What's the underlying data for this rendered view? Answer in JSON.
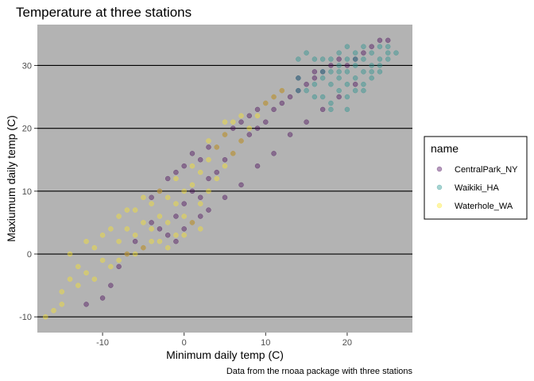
{
  "chart_data": {
    "type": "scatter",
    "title": "Temperature at three stations",
    "xlabel": "Minimum daily temp (C)",
    "ylabel": "Maxiumum daily temp (C)",
    "caption": "Data from the rnoaa package with three stations",
    "xlim": [
      -18,
      28
    ],
    "ylim": [
      -12.5,
      36.5
    ],
    "x_ticks": [
      -10,
      0,
      10,
      20
    ],
    "y_ticks": [
      -10,
      0,
      10,
      20,
      30
    ],
    "x_tick_labels": [
      "-10",
      "0",
      "10",
      "20"
    ],
    "y_tick_labels": [
      "-10",
      "0",
      "10",
      "20",
      "30"
    ],
    "grid": "horizontal major lines only",
    "panel_background": "#b3b3b3",
    "legend_position": "right",
    "legend_title": "name",
    "series": [
      {
        "name": "CentralPark_NY",
        "color": "#440154",
        "points": [
          [
            -12,
            -8
          ],
          [
            -10,
            -7
          ],
          [
            -9,
            -5
          ],
          [
            -8,
            -2
          ],
          [
            -7,
            0
          ],
          [
            -6,
            2
          ],
          [
            -5,
            1
          ],
          [
            -4,
            5
          ],
          [
            -3,
            4
          ],
          [
            -2,
            3
          ],
          [
            -1,
            6
          ],
          [
            0,
            8
          ],
          [
            1,
            10
          ],
          [
            2,
            9
          ],
          [
            3,
            12
          ],
          [
            4,
            13
          ],
          [
            5,
            15
          ],
          [
            6,
            16
          ],
          [
            7,
            18
          ],
          [
            8,
            19
          ],
          [
            9,
            20
          ],
          [
            10,
            21
          ],
          [
            11,
            23
          ],
          [
            12,
            24
          ],
          [
            13,
            25
          ],
          [
            14,
            26
          ],
          [
            15,
            27
          ],
          [
            16,
            28
          ],
          [
            17,
            29
          ],
          [
            18,
            30
          ],
          [
            19,
            31
          ],
          [
            20,
            30
          ],
          [
            21,
            31
          ],
          [
            22,
            32
          ],
          [
            23,
            33
          ],
          [
            24,
            34
          ],
          [
            25,
            34
          ],
          [
            -4,
            9
          ],
          [
            -2,
            12
          ],
          [
            0,
            14
          ],
          [
            2,
            15
          ],
          [
            4,
            17
          ],
          [
            6,
            20
          ],
          [
            8,
            22
          ],
          [
            10,
            24
          ],
          [
            12,
            26
          ],
          [
            14,
            28
          ],
          [
            16,
            29
          ],
          [
            -1,
            2
          ],
          [
            1,
            5
          ],
          [
            3,
            7
          ],
          [
            5,
            9
          ],
          [
            7,
            11
          ],
          [
            9,
            14
          ],
          [
            11,
            16
          ],
          [
            13,
            19
          ],
          [
            15,
            21
          ],
          [
            17,
            23
          ],
          [
            19,
            25
          ],
          [
            21,
            27
          ],
          [
            -3,
            10
          ],
          [
            -1,
            13
          ],
          [
            1,
            16
          ],
          [
            3,
            17
          ],
          [
            5,
            19
          ],
          [
            7,
            21
          ],
          [
            9,
            23
          ],
          [
            11,
            25
          ],
          [
            0,
            4
          ],
          [
            2,
            6
          ]
        ]
      },
      {
        "name": "Waikiki_HA",
        "color": "#21908c",
        "points": [
          [
            15,
            26
          ],
          [
            15,
            32
          ],
          [
            16,
            31
          ],
          [
            16,
            27
          ],
          [
            17,
            31
          ],
          [
            17,
            28
          ],
          [
            17,
            25
          ],
          [
            18,
            31
          ],
          [
            18,
            29
          ],
          [
            18,
            27
          ],
          [
            18,
            23
          ],
          [
            19,
            32
          ],
          [
            19,
            30
          ],
          [
            19,
            28
          ],
          [
            19,
            26
          ],
          [
            20,
            31
          ],
          [
            20,
            29
          ],
          [
            20,
            27
          ],
          [
            20,
            25
          ],
          [
            21,
            32
          ],
          [
            21,
            30
          ],
          [
            21,
            28
          ],
          [
            21,
            26
          ],
          [
            22,
            33
          ],
          [
            22,
            31
          ],
          [
            22,
            29
          ],
          [
            22,
            27
          ],
          [
            23,
            32
          ],
          [
            23,
            30
          ],
          [
            23,
            28
          ],
          [
            24,
            33
          ],
          [
            24,
            31
          ],
          [
            24,
            29
          ],
          [
            25,
            32
          ],
          [
            25,
            31
          ],
          [
            26,
            32
          ],
          [
            14,
            31
          ],
          [
            14,
            28
          ],
          [
            14,
            26
          ],
          [
            16,
            25
          ],
          [
            18,
            24
          ],
          [
            20,
            23
          ],
          [
            22,
            26
          ],
          [
            24,
            30
          ],
          [
            21,
            31
          ],
          [
            19,
            29
          ],
          [
            17,
            29
          ],
          [
            23,
            29
          ],
          [
            25,
            33
          ],
          [
            20,
            33
          ]
        ]
      },
      {
        "name": "Waterhole_WA",
        "color": "#fde725",
        "points": [
          [
            -17,
            -10
          ],
          [
            -16,
            -9
          ],
          [
            -15,
            -6
          ],
          [
            -14,
            -4
          ],
          [
            -14,
            0
          ],
          [
            -13,
            -2
          ],
          [
            -12,
            2
          ],
          [
            -12,
            -3
          ],
          [
            -11,
            1
          ],
          [
            -10,
            -1
          ],
          [
            -9,
            4
          ],
          [
            -9,
            -2
          ],
          [
            -8,
            2
          ],
          [
            -8,
            6
          ],
          [
            -7,
            0
          ],
          [
            -7,
            4
          ],
          [
            -6,
            3
          ],
          [
            -6,
            7
          ],
          [
            -5,
            1
          ],
          [
            -5,
            5
          ],
          [
            -4,
            4
          ],
          [
            -4,
            8
          ],
          [
            -3,
            2
          ],
          [
            -3,
            6
          ],
          [
            -2,
            5
          ],
          [
            -2,
            9
          ],
          [
            -1,
            3
          ],
          [
            -1,
            8
          ],
          [
            0,
            6
          ],
          [
            0,
            10
          ],
          [
            1,
            5
          ],
          [
            1,
            11
          ],
          [
            2,
            8
          ],
          [
            2,
            13
          ],
          [
            3,
            10
          ],
          [
            3,
            15
          ],
          [
            4,
            12
          ],
          [
            4,
            17
          ],
          [
            5,
            14
          ],
          [
            5,
            19
          ],
          [
            6,
            16
          ],
          [
            6,
            21
          ],
          [
            7,
            18
          ],
          [
            8,
            20
          ],
          [
            9,
            22
          ],
          [
            10,
            24
          ],
          [
            11,
            25
          ],
          [
            12,
            26
          ],
          [
            -11,
            -4
          ],
          [
            -10,
            3
          ],
          [
            -8,
            -1
          ],
          [
            -6,
            0
          ],
          [
            -4,
            2
          ],
          [
            -2,
            1
          ],
          [
            0,
            3
          ],
          [
            2,
            4
          ],
          [
            -13,
            -5
          ],
          [
            -15,
            -8
          ],
          [
            -3,
            10
          ],
          [
            -1,
            12
          ],
          [
            1,
            14
          ],
          [
            3,
            18
          ],
          [
            5,
            21
          ],
          [
            7,
            22
          ],
          [
            -5,
            9
          ],
          [
            -7,
            7
          ]
        ]
      }
    ]
  }
}
